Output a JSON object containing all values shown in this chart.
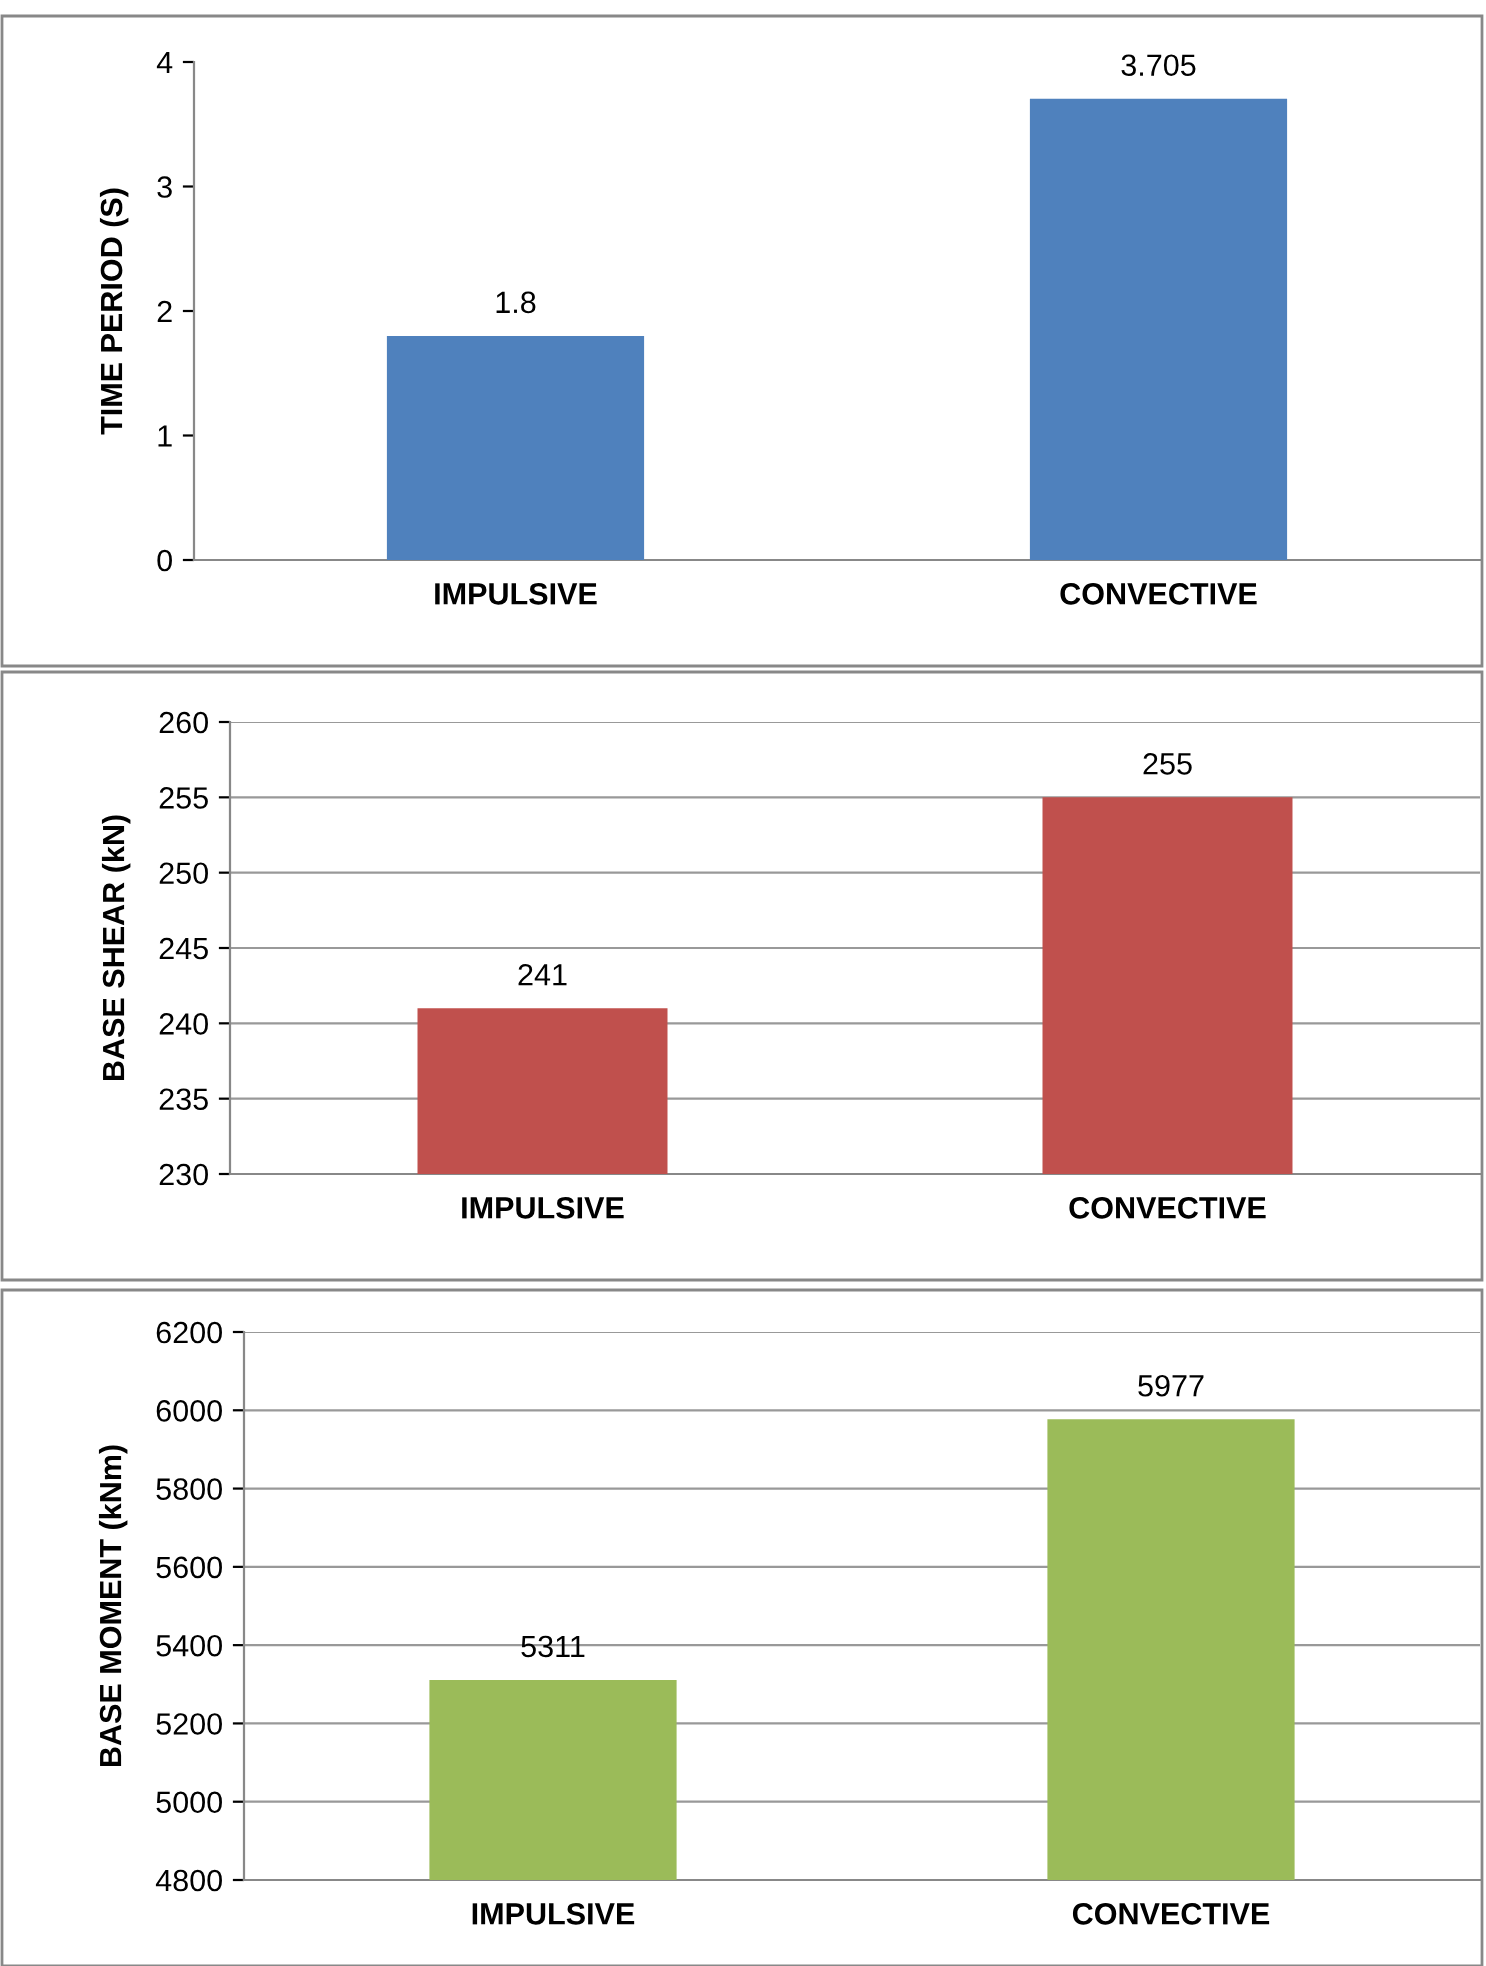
{
  "chart_data": [
    {
      "type": "bar",
      "ylabel": "TIME PERIOD (S)",
      "categories": [
        "IMPULSIVE",
        "CONVECTIVE"
      ],
      "values": [
        1.8,
        3.705
      ],
      "color": "#4f81bd",
      "ylim": [
        0,
        4
      ],
      "yticks": [
        0,
        1,
        2,
        3,
        4
      ],
      "grid": false,
      "data_labels": true
    },
    {
      "type": "bar",
      "ylabel": "BASE SHEAR (kN)",
      "categories": [
        "IMPULSIVE",
        "CONVECTIVE"
      ],
      "values": [
        241,
        255
      ],
      "color": "#c0504d",
      "ylim": [
        230,
        260
      ],
      "yticks": [
        230,
        235,
        240,
        245,
        250,
        255,
        260
      ],
      "grid": "y",
      "data_labels": true
    },
    {
      "type": "bar",
      "ylabel": "BASE MOMENT (kNm)",
      "categories": [
        "IMPULSIVE",
        "CONVECTIVE"
      ],
      "values": [
        5311,
        5977
      ],
      "color": "#9bbb59",
      "ylim": [
        4800,
        6200
      ],
      "yticks": [
        4800,
        5000,
        5200,
        5400,
        5600,
        5800,
        6000,
        6200
      ],
      "grid": "y",
      "data_labels": true
    }
  ]
}
